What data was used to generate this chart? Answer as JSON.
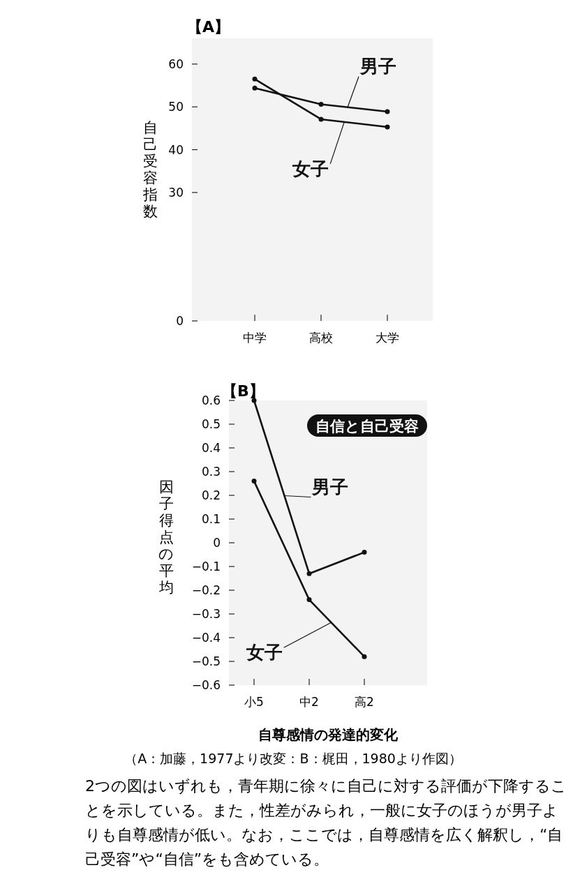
{
  "chart_data": [
    {
      "type": "line",
      "title": "【A】",
      "ylabel": "自己受容指数",
      "categories": [
        "中学",
        "高校",
        "大学"
      ],
      "series": [
        {
          "name": "男子",
          "color": "#111111",
          "values": [
            54.4,
            50.6,
            48.9
          ]
        },
        {
          "name": "女子",
          "color": "#111111",
          "values": [
            56.5,
            47.1,
            45.3
          ]
        }
      ],
      "ylim": [
        0,
        66
      ],
      "yticks": [
        0,
        30,
        40,
        50,
        60
      ],
      "marker": "circle",
      "line_style": "solid",
      "grid": false
    },
    {
      "type": "line",
      "title": "【B】",
      "ylabel": "因子得点の平均",
      "categories": [
        "小5",
        "中2",
        "高2"
      ],
      "series": [
        {
          "name": "男子",
          "color": "#111111",
          "values": [
            0.6,
            -0.13,
            -0.04
          ]
        },
        {
          "name": "女子",
          "color": "#111111",
          "values": [
            0.26,
            -0.24,
            -0.48
          ]
        }
      ],
      "ylim": [
        -0.6,
        0.6
      ],
      "yticks": [
        0.6,
        0.5,
        0.4,
        0.3,
        0.2,
        0.1,
        0,
        -0.1,
        -0.2,
        -0.3,
        -0.4,
        -0.5,
        -0.6
      ],
      "marker": "circle",
      "line_style": "solid",
      "grid": false,
      "annotations": [
        "自信と自己受容",
        "自尊感情の発達的変化",
        "（A：加藤，1977より改変：B：梶田，1980より作図）",
        "2つの図はいずれも，青年期に徐々に自己に対する評価が下降することを示している。また，性差がみられ，一般に女子のほうが男子よりも自尊感情が低い。なお，ここでは，自尊感情を広く解釈し，“自己受容”や“自信”をも含めている。"
      ]
    }
  ]
}
